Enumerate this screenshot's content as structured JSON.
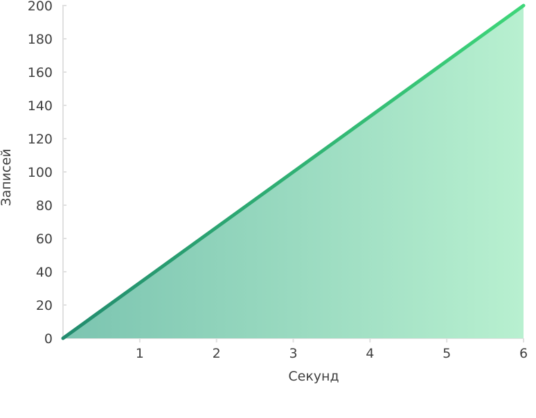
{
  "chart_data": {
    "type": "area",
    "xlabel": "Секунд",
    "ylabel": "Записей",
    "x": [
      0,
      6
    ],
    "series": [
      {
        "values": [
          0,
          200
        ]
      }
    ],
    "xlim": [
      0,
      6
    ],
    "ylim": [
      0,
      200
    ],
    "xticks": [
      1,
      2,
      3,
      4,
      5,
      6
    ],
    "yticks": [
      0,
      20,
      40,
      60,
      80,
      100,
      120,
      140,
      160,
      180,
      200
    ],
    "grid": false,
    "legend": "none",
    "colors": {
      "line_start": "#228b6e",
      "line_end": "#3ed679",
      "fill_start": "#7bc4b0",
      "fill_end": "#b8f0d0",
      "axis": "#e0e0e0"
    }
  }
}
